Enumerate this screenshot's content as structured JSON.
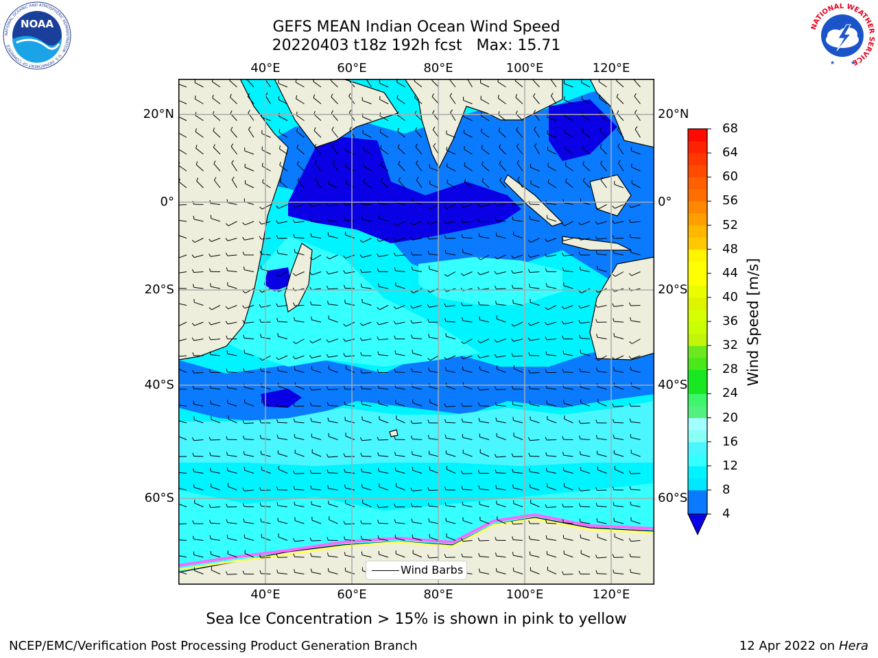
{
  "title": {
    "line1": "GEFS MEAN Indian Ocean Wind Speed",
    "line2": "20220403 t18z 192h fcst   Max: 15.71"
  },
  "map": {
    "longitude_labels": [
      "40°E",
      "60°E",
      "80°E",
      "100°E",
      "120°E"
    ],
    "latitude_labels": [
      "20°N",
      "0°",
      "20°S",
      "40°S",
      "60°S"
    ],
    "projection": "cylindrical lat-lon grid",
    "grid": true,
    "land_color": "#eeeedd",
    "ice_colors": [
      "#ff66ff",
      "#ff9900",
      "#ffff66"
    ]
  },
  "legend": {
    "label": "Wind Barbs",
    "placement": "bottom-center"
  },
  "colorbar": {
    "label": "Wind Speed [m/s]",
    "ticks": [
      "4",
      "8",
      "12",
      "16",
      "20",
      "24",
      "28",
      "32",
      "36",
      "40",
      "44",
      "48",
      "52",
      "56",
      "60",
      "64",
      "68"
    ],
    "bins": [
      {
        "from": 4,
        "to": 6,
        "color": "#0a7bff"
      },
      {
        "from": 6,
        "to": 8,
        "color": "#0a7bff"
      },
      {
        "from": 8,
        "to": 10,
        "color": "#00e7ff"
      },
      {
        "from": 10,
        "to": 12,
        "color": "#00f4ff"
      },
      {
        "from": 12,
        "to": 14,
        "color": "#36ffff"
      },
      {
        "from": 14,
        "to": 16,
        "color": "#4af6ff"
      },
      {
        "from": 16,
        "to": 18,
        "color": "#8afff5"
      },
      {
        "from": 18,
        "to": 20,
        "color": "#a2ffff"
      },
      {
        "from": 20,
        "to": 22,
        "color": "#52f07e"
      },
      {
        "from": 22,
        "to": 24,
        "color": "#3ef66c"
      },
      {
        "from": 24,
        "to": 26,
        "color": "#17e821"
      },
      {
        "from": 26,
        "to": 28,
        "color": "#17e821"
      },
      {
        "from": 28,
        "to": 30,
        "color": "#4ae81a"
      },
      {
        "from": 30,
        "to": 32,
        "color": "#6be820"
      },
      {
        "from": 32,
        "to": 34,
        "color": "#c1f60b"
      },
      {
        "from": 34,
        "to": 36,
        "color": "#c9ff02"
      },
      {
        "from": 36,
        "to": 38,
        "color": "#d6ff00"
      },
      {
        "from": 38,
        "to": 40,
        "color": "#ddf400"
      },
      {
        "from": 40,
        "to": 42,
        "color": "#eafd00"
      },
      {
        "from": 42,
        "to": 44,
        "color": "#ffff01"
      },
      {
        "from": 44,
        "to": 46,
        "color": "#ffff01"
      },
      {
        "from": 46,
        "to": 48,
        "color": "#fff500"
      },
      {
        "from": 48,
        "to": 50,
        "color": "#ffc800"
      },
      {
        "from": 50,
        "to": 52,
        "color": "#ffb700"
      },
      {
        "from": 52,
        "to": 54,
        "color": "#ff9f00"
      },
      {
        "from": 54,
        "to": 56,
        "color": "#ff8800"
      },
      {
        "from": 56,
        "to": 58,
        "color": "#ff6e00"
      },
      {
        "from": 58,
        "to": 60,
        "color": "#ff6000"
      },
      {
        "from": 60,
        "to": 62,
        "color": "#ff4a00"
      },
      {
        "from": 62,
        "to": 64,
        "color": "#ff3800"
      },
      {
        "from": 64,
        "to": 66,
        "color": "#ff2200"
      },
      {
        "from": 66,
        "to": 68,
        "color": "#ff0a00"
      }
    ],
    "under_color": "#0a00e6"
  },
  "subtitle": "Sea Ice Concentration > 15% is shown in pink to yellow",
  "footer": {
    "left": "NCEP/EMC/Verification Post Processing Product Generation Branch",
    "right_date": "12 Apr 2022 on ",
    "right_host": "Hera"
  },
  "logos": {
    "left": "NOAA",
    "left_ring": "NATIONAL OCEANIC AND ATMOSPHERIC ADMINISTRATION · U.S. DEPARTMENT OF COMMERCE",
    "right_ring": "NATIONAL WEATHER SERVICE"
  }
}
